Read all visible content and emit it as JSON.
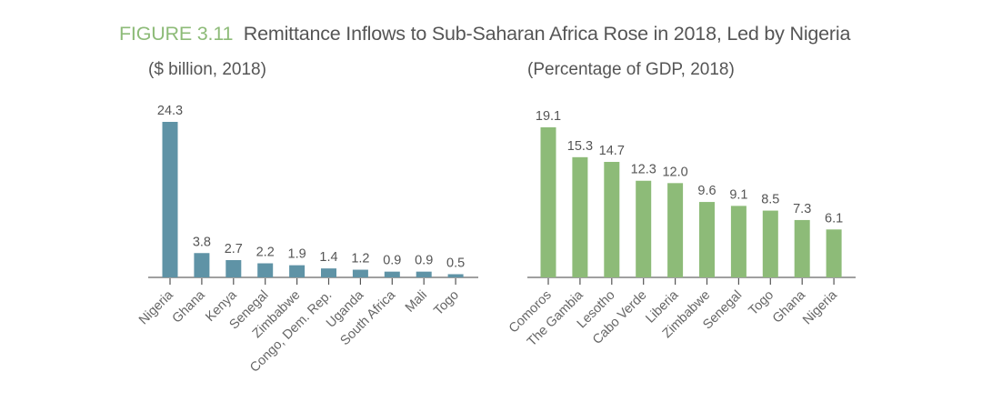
{
  "figure": {
    "label": "FIGURE 3.11",
    "title": "Remittance Inflows to Sub-Saharan Africa Rose in 2018, Led by Nigeria"
  },
  "chart_data": [
    {
      "type": "bar",
      "title": "($ billion, 2018)",
      "xlabel": "",
      "ylabel": "",
      "categories": [
        "Nigeria",
        "Ghana",
        "Kenya",
        "Senegal",
        "Zimbabwe",
        "Congo, Dem. Rep.",
        "Uganda",
        "South Africa",
        "Mali",
        "Togo"
      ],
      "values": [
        24.3,
        3.8,
        2.7,
        2.2,
        1.9,
        1.4,
        1.2,
        0.9,
        0.9,
        0.5
      ],
      "value_labels": [
        "24.3",
        "3.8",
        "2.7",
        "2.2",
        "1.9",
        "1.4",
        "1.2",
        "0.9",
        "0.9",
        "0.5"
      ],
      "ylim": [
        0,
        24.3
      ],
      "grid": false,
      "color": "#5f93a6"
    },
    {
      "type": "bar",
      "title": "(Percentage of GDP, 2018)",
      "xlabel": "",
      "ylabel": "",
      "categories": [
        "Comoros",
        "The Gambia",
        "Lesotho",
        "Cabo Verde",
        "Liberia",
        "Zimbabwe",
        "Senegal",
        "Togo",
        "Ghana",
        "Nigeria"
      ],
      "values": [
        19.1,
        15.3,
        14.7,
        12.3,
        12.0,
        9.6,
        9.1,
        8.5,
        7.3,
        6.1
      ],
      "value_labels": [
        "19.1",
        "15.3",
        "14.7",
        "12.3",
        "12.0",
        "9.6",
        "9.1",
        "8.5",
        "7.3",
        "6.1"
      ],
      "ylim": [
        0,
        19.1
      ],
      "grid": false,
      "color": "#8dbb78"
    }
  ]
}
